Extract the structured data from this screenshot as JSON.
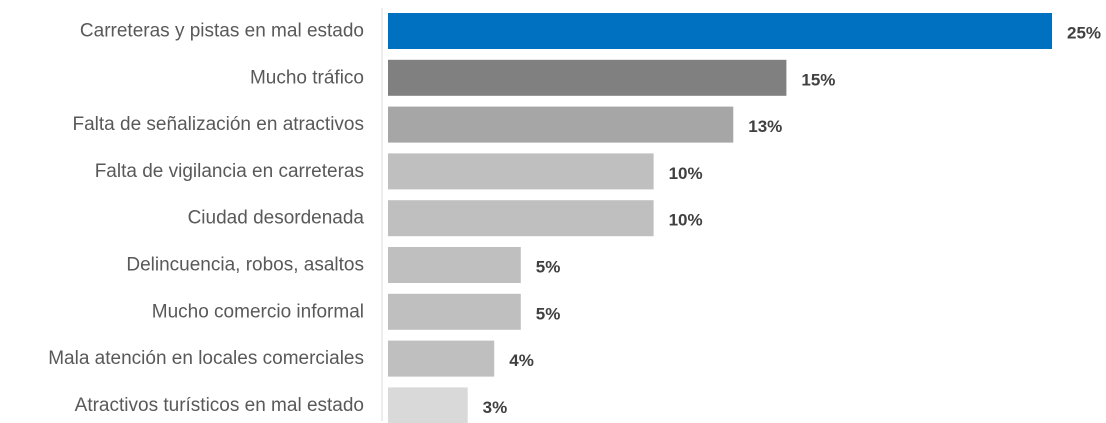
{
  "chart_data": {
    "type": "bar",
    "orientation": "horizontal",
    "categories": [
      "Carreteras y pistas en mal estado",
      "Mucho tráfico",
      "Falta de señalización en atractivos",
      "Falta de vigilancia en carreteras",
      "Ciudad desordenada",
      "Delincuencia, robos, asaltos",
      "Mucho comercio informal",
      "Mala atención en locales comerciales",
      "Atractivos turísticos en mal estado"
    ],
    "values": [
      25,
      15,
      13,
      10,
      10,
      5,
      5,
      4,
      3
    ],
    "value_labels": [
      "25%",
      "15%",
      "13%",
      "10%",
      "10%",
      "5%",
      "5%",
      "4%",
      "3%"
    ],
    "bar_colors": [
      "#0070C0",
      "#808080",
      "#A6A6A6",
      "#BFBFBF",
      "#BFBFBF",
      "#BFBFBF",
      "#BFBFBF",
      "#BFBFBF",
      "#D9D9D9"
    ],
    "unit": "%",
    "title": "",
    "xlabel": "",
    "ylabel": "",
    "xlim": [
      0,
      25
    ],
    "grid": false,
    "legend": "none"
  }
}
